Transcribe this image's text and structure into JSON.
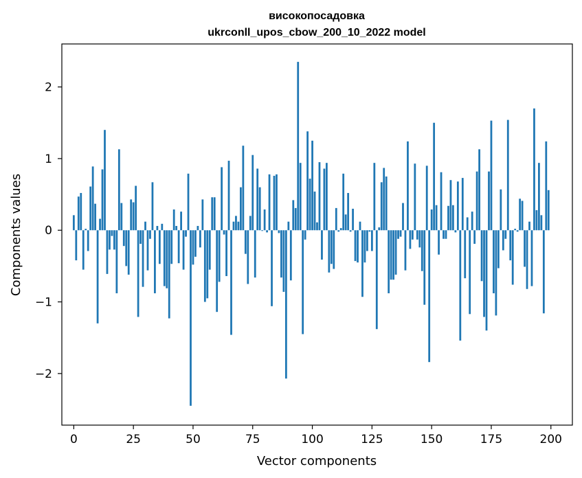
{
  "chart_data": {
    "type": "bar",
    "title": "високопосадовка",
    "subtitle": "ukrconll_upos_cbow_200_10_2022 model",
    "xlabel": "Vector components",
    "ylabel": "Components values",
    "xlim": [
      -5,
      209
    ],
    "ylim": [
      -2.72,
      2.6
    ],
    "xticks": [
      0,
      25,
      50,
      75,
      100,
      125,
      150,
      175,
      200
    ],
    "xtick_labels": [
      "0",
      "25",
      "50",
      "75",
      "100",
      "125",
      "150",
      "175",
      "200"
    ],
    "yticks": [
      -2,
      -1,
      0,
      1,
      2
    ],
    "ytick_labels": [
      "−2",
      "−1",
      "0",
      "1",
      "2"
    ],
    "grid": false,
    "bar_color": "#1f77b4",
    "x": [
      0,
      1,
      2,
      3,
      4,
      5,
      6,
      7,
      8,
      9,
      10,
      11,
      12,
      13,
      14,
      15,
      16,
      17,
      18,
      19,
      20,
      21,
      22,
      23,
      24,
      25,
      26,
      27,
      28,
      29,
      30,
      31,
      32,
      33,
      34,
      35,
      36,
      37,
      38,
      39,
      40,
      41,
      42,
      43,
      44,
      45,
      46,
      47,
      48,
      49,
      50,
      51,
      52,
      53,
      54,
      55,
      56,
      57,
      58,
      59,
      60,
      61,
      62,
      63,
      64,
      65,
      66,
      67,
      68,
      69,
      70,
      71,
      72,
      73,
      74,
      75,
      76,
      77,
      78,
      79,
      80,
      81,
      82,
      83,
      84,
      85,
      86,
      87,
      88,
      89,
      90,
      91,
      92,
      93,
      94,
      95,
      96,
      97,
      98,
      99,
      100,
      101,
      102,
      103,
      104,
      105,
      106,
      107,
      108,
      109,
      110,
      111,
      112,
      113,
      114,
      115,
      116,
      117,
      118,
      119,
      120,
      121,
      122,
      123,
      124,
      125,
      126,
      127,
      128,
      129,
      130,
      131,
      132,
      133,
      134,
      135,
      136,
      137,
      138,
      139,
      140,
      141,
      142,
      143,
      144,
      145,
      146,
      147,
      148,
      149,
      150,
      151,
      152,
      153,
      154,
      155,
      156,
      157,
      158,
      159,
      160,
      161,
      162,
      163,
      164,
      165,
      166,
      167,
      168,
      169,
      170,
      171,
      172,
      173,
      174,
      175,
      176,
      177,
      178,
      179,
      180,
      181,
      182,
      183,
      184,
      185,
      186,
      187,
      188,
      189,
      190,
      191,
      192,
      193,
      194,
      195,
      196,
      197,
      198,
      199
    ],
    "values": [
      0.21,
      -0.42,
      0.47,
      0.52,
      -0.55,
      0.02,
      -0.29,
      0.61,
      0.89,
      0.37,
      -1.3,
      0.16,
      0.85,
      1.4,
      -0.61,
      -0.27,
      -0.08,
      -0.27,
      -0.88,
      1.13,
      0.38,
      -0.22,
      -0.5,
      -0.62,
      0.43,
      0.39,
      0.62,
      -1.21,
      -0.19,
      -0.79,
      0.12,
      -0.56,
      -0.12,
      0.67,
      -0.88,
      0.06,
      -0.47,
      0.09,
      -0.78,
      -0.81,
      -1.23,
      -0.47,
      0.29,
      0.06,
      -0.46,
      0.26,
      -0.55,
      -0.09,
      0.79,
      -2.45,
      -0.48,
      -0.37,
      0.06,
      -0.24,
      0.43,
      -1.0,
      -0.95,
      -0.55,
      0.46,
      0.46,
      -1.14,
      -0.72,
      0.88,
      -0.06,
      -0.64,
      0.97,
      -1.46,
      0.12,
      0.2,
      0.12,
      0.6,
      1.18,
      -0.33,
      -0.75,
      0.2,
      1.05,
      -0.66,
      0.86,
      0.6,
      -0.01,
      0.29,
      -0.03,
      0.78,
      -1.06,
      0.76,
      0.78,
      -0.04,
      -0.66,
      -0.86,
      -2.07,
      0.12,
      -0.7,
      0.42,
      0.31,
      2.35,
      0.94,
      -1.45,
      -0.13,
      1.38,
      0.72,
      1.25,
      0.54,
      0.11,
      0.95,
      -0.41,
      0.86,
      0.94,
      -0.59,
      -0.47,
      -0.54,
      0.31,
      -0.02,
      0.03,
      0.79,
      0.22,
      0.52,
      -0.02,
      0.3,
      -0.43,
      -0.45,
      0.12,
      -0.93,
      -0.45,
      -0.29,
      -0.02,
      -0.29,
      0.94,
      -1.38,
      0.04,
      0.67,
      0.87,
      0.75,
      -0.88,
      -0.69,
      -0.69,
      -0.62,
      -0.12,
      -0.09,
      0.38,
      -0.56,
      1.24,
      -0.26,
      -0.13,
      0.93,
      -0.13,
      -0.24,
      -0.57,
      -1.04,
      0.9,
      -1.84,
      0.29,
      1.5,
      0.35,
      -0.34,
      0.81,
      -0.12,
      -0.12,
      0.34,
      0.7,
      0.35,
      -0.03,
      0.68,
      -1.54,
      0.73,
      -0.67,
      0.18,
      -1.17,
      0.26,
      -0.19,
      0.82,
      1.13,
      -0.71,
      -1.21,
      -1.4,
      0.82,
      1.53,
      -0.88,
      -1.19,
      -0.53,
      0.57,
      -0.28,
      -0.12,
      1.54,
      -0.42,
      -0.76,
      0.02,
      -0.02,
      0.44,
      0.41,
      -0.51,
      -0.82,
      0.12,
      -0.78,
      1.7,
      0.28,
      0.94,
      0.21,
      -1.16,
      1.24,
      0.56
    ]
  }
}
